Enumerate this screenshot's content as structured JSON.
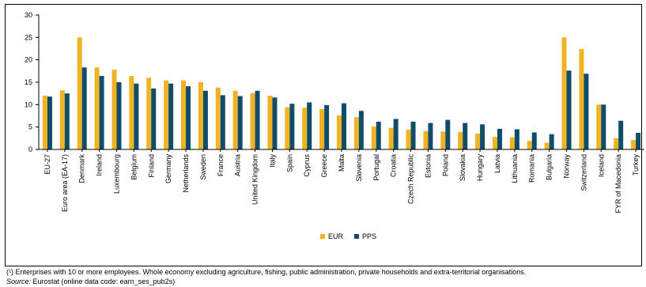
{
  "chart_data": {
    "type": "bar",
    "ylim": [
      0,
      30
    ],
    "yticks": [
      "0",
      "5",
      "10",
      "15",
      "20",
      "25",
      "30"
    ],
    "grid": false,
    "legend_position": "bottom",
    "categories": [
      "EU-27",
      "Euro area (EA-17)",
      "Denmark",
      "Ireland",
      "Luxembourg",
      "Belgium",
      "Finland",
      "Germany",
      "Netherlands",
      "Sweden",
      "France",
      "Austria",
      "United Kingdom",
      "Italy",
      "Spain",
      "Cyprus",
      "Greece",
      "Malta",
      "Slovenia",
      "Portugal",
      "Croatia",
      "Czech Republic",
      "Estonia",
      "Poland",
      "Slovakia",
      "Hungary",
      "Latvia",
      "Lithuania",
      "Romania",
      "Bulgaria",
      "Norway",
      "Switzerland",
      "Iceland",
      "FYR of Macedonia",
      "Turkey"
    ],
    "series": [
      {
        "name": "EUR",
        "color": "#f0b323",
        "values": [
          12.0,
          13.2,
          25.0,
          18.3,
          17.8,
          16.4,
          16.0,
          15.4,
          15.4,
          15.0,
          13.8,
          13.1,
          12.6,
          12.0,
          9.4,
          9.3,
          9.0,
          7.6,
          7.2,
          5.1,
          4.8,
          4.4,
          4.1,
          4.0,
          3.9,
          3.5,
          2.8,
          2.7,
          1.9,
          1.5,
          25.0,
          22.4,
          10.0,
          2.5,
          2.1
        ]
      },
      {
        "name": "PPS",
        "color": "#0f4d6b",
        "values": [
          11.8,
          12.5,
          18.3,
          16.4,
          15.0,
          14.7,
          13.6,
          14.7,
          14.1,
          13.1,
          12.1,
          11.9,
          13.1,
          11.6,
          10.2,
          10.5,
          9.9,
          10.3,
          8.6,
          6.2,
          6.8,
          6.2,
          5.9,
          6.6,
          5.9,
          5.6,
          4.6,
          4.5,
          3.8,
          3.4,
          17.6,
          16.9,
          10.0,
          6.4,
          3.7
        ]
      }
    ]
  },
  "legend": {
    "eur_label": "EUR",
    "pps_label": "PPS"
  },
  "footnote": "(¹) Enterprises with 10 or more employees. Whole economy excluding agriculture, fishing, public administration, private households and extra-territorial organisations.",
  "source": {
    "label": "Source:",
    "text": " Eurostat (online data code: earn_ses_pub2s)"
  }
}
